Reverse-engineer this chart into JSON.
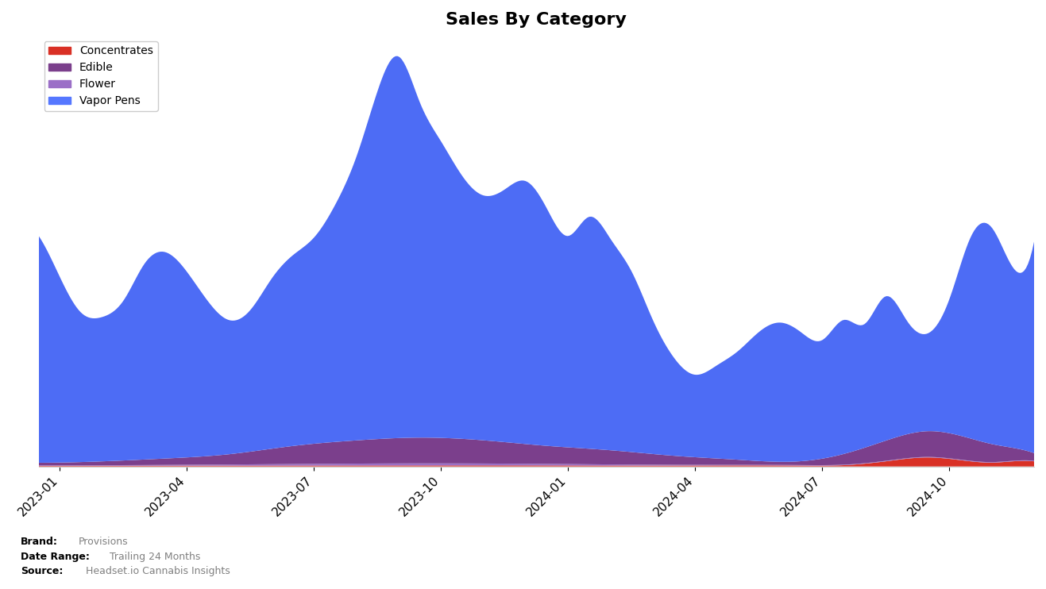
{
  "title": "Sales By Category",
  "title_fontsize": 16,
  "categories": [
    "Concentrates",
    "Edible",
    "Flower",
    "Vapor Pens"
  ],
  "colors": {
    "Concentrates": "#d93025",
    "Edible": "#7b3f8c",
    "Flower": "#9b6fc7",
    "Vapor Pens": "#4d6cf5"
  },
  "legend_colors": {
    "Concentrates": "#d93025",
    "Edible": "#7b3f8c",
    "Flower": "#9b6fc7",
    "Vapor Pens": "#5577ff"
  },
  "xtick_labels": [
    "2023-01",
    "2023-04",
    "2023-07",
    "2023-10",
    "2024-01",
    "2024-04",
    "2024-07",
    "2024-10"
  ],
  "brand_label": "Provisions",
  "date_range_label": "Trailing 24 Months",
  "source_label": "Headset.io Cannabis Insights",
  "background_color": "#ffffff",
  "vapor_pens_x": [
    0,
    1,
    2,
    3,
    4,
    5,
    6,
    7,
    8,
    9,
    10,
    11,
    12,
    13,
    14,
    15,
    16,
    17,
    18,
    19,
    20,
    21,
    22,
    23,
    24,
    25,
    26,
    27,
    28,
    29,
    30,
    31,
    32,
    33,
    34,
    35,
    36,
    37,
    38,
    39,
    40,
    41,
    42,
    43,
    44,
    45,
    46,
    47
  ],
  "vapor_pens_y": [
    8800,
    7200,
    5800,
    5600,
    6200,
    7600,
    8000,
    7200,
    6000,
    5200,
    5500,
    6600,
    7400,
    8000,
    9200,
    11000,
    13500,
    14800,
    13000,
    11500,
    10200,
    9500,
    9800,
    10200,
    9200,
    8200,
    9000,
    8200,
    7000,
    5200,
    3800,
    3200,
    3600,
    4200,
    5000,
    5400,
    5000,
    4600,
    5200,
    4800,
    5600,
    4400,
    3800,
    5200,
    7800,
    8400,
    7000,
    8200
  ],
  "edible_x": [
    0,
    3,
    6,
    9,
    12,
    15,
    18,
    21,
    24,
    27,
    30,
    33,
    36,
    39,
    42,
    45,
    47
  ],
  "edible_y": [
    100,
    150,
    250,
    400,
    700,
    900,
    1000,
    900,
    700,
    550,
    350,
    200,
    150,
    600,
    1000,
    700,
    300
  ],
  "flower_x": [
    0,
    6,
    12,
    18,
    24,
    30,
    36,
    42,
    47
  ],
  "flower_y": [
    20,
    30,
    60,
    80,
    60,
    30,
    20,
    20,
    20
  ],
  "concentrates_x": [
    0,
    6,
    12,
    18,
    24,
    30,
    36,
    38,
    40,
    42,
    44,
    45,
    46,
    47
  ],
  "concentrates_y": [
    25,
    30,
    35,
    40,
    40,
    35,
    35,
    50,
    200,
    350,
    200,
    150,
    200,
    200
  ],
  "tick_positions": [
    1,
    7,
    13,
    19,
    25,
    31,
    37,
    43
  ]
}
